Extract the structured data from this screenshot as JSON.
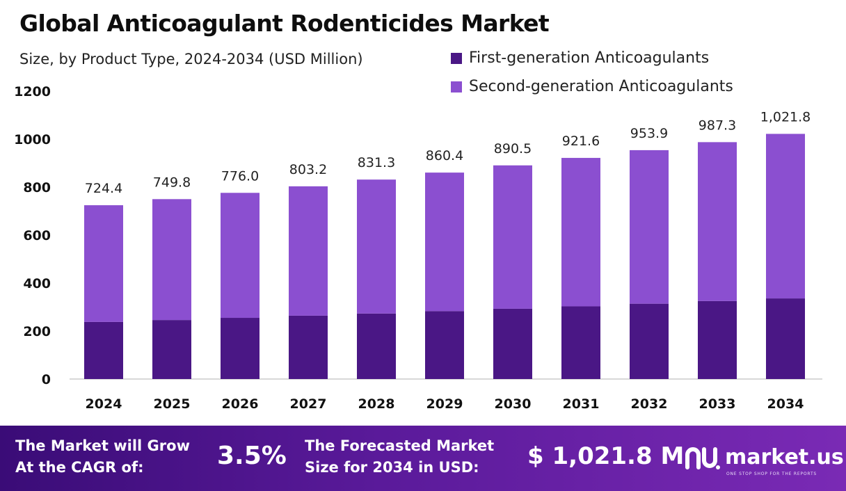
{
  "header": {
    "title": "Global Anticoagulant Rodenticides Market",
    "subtitle": "Size, by Product Type, 2024-2034 (USD Million)"
  },
  "legend": [
    {
      "label": "First-generation Anticoagulants",
      "color": "#4a1785"
    },
    {
      "label": "Second-generation Anticoagulants",
      "color": "#8b4fd0"
    }
  ],
  "chart_data": {
    "type": "bar",
    "stacked": true,
    "categories": [
      "2024",
      "2025",
      "2026",
      "2027",
      "2028",
      "2029",
      "2030",
      "2031",
      "2032",
      "2033",
      "2034"
    ],
    "series": [
      {
        "name": "First-generation Anticoagulants",
        "color": "#4a1785",
        "values": [
          238,
          246,
          255,
          264,
          273,
          283,
          293,
          303,
          314,
          325,
          336
        ]
      },
      {
        "name": "Second-generation Anticoagulants",
        "color": "#8b4fd0",
        "values": [
          486.4,
          503.8,
          521.0,
          539.2,
          558.3,
          577.4,
          597.5,
          618.6,
          639.9,
          662.3,
          685.8
        ]
      }
    ],
    "totals": [
      724.4,
      749.8,
      776.0,
      803.2,
      831.3,
      860.4,
      890.5,
      921.6,
      953.9,
      987.3,
      1021.8
    ],
    "total_labels": [
      "724.4",
      "749.8",
      "776.0",
      "803.2",
      "831.3",
      "860.4",
      "890.5",
      "921.6",
      "953.9",
      "987.3",
      "1,021.8"
    ],
    "title": "Global Anticoagulant Rodenticides Market",
    "subtitle": "Size, by Product Type, 2024-2034 (USD Million)",
    "xlabel": "",
    "ylabel": "",
    "ylim": [
      0,
      1200
    ],
    "yticks": [
      0,
      200,
      400,
      600,
      800,
      1000,
      1200
    ],
    "grid": false,
    "legend_position": "top-right"
  },
  "footer": {
    "cagr_label_line1": "The Market will Grow",
    "cagr_label_line2": "At the CAGR of:",
    "cagr_value": "3.5%",
    "size_label_line1": "The Forecasted Market",
    "size_label_line2": "Size for 2034 in USD:",
    "size_value": "$ 1,021.8 M",
    "logo_text": "market.us",
    "logo_tagline": "ONE STOP SHOP FOR THE REPORTS",
    "logo_icon": "market-us-logo-icon",
    "background_colors": [
      "#3a0c77",
      "#7a2ab5"
    ]
  }
}
